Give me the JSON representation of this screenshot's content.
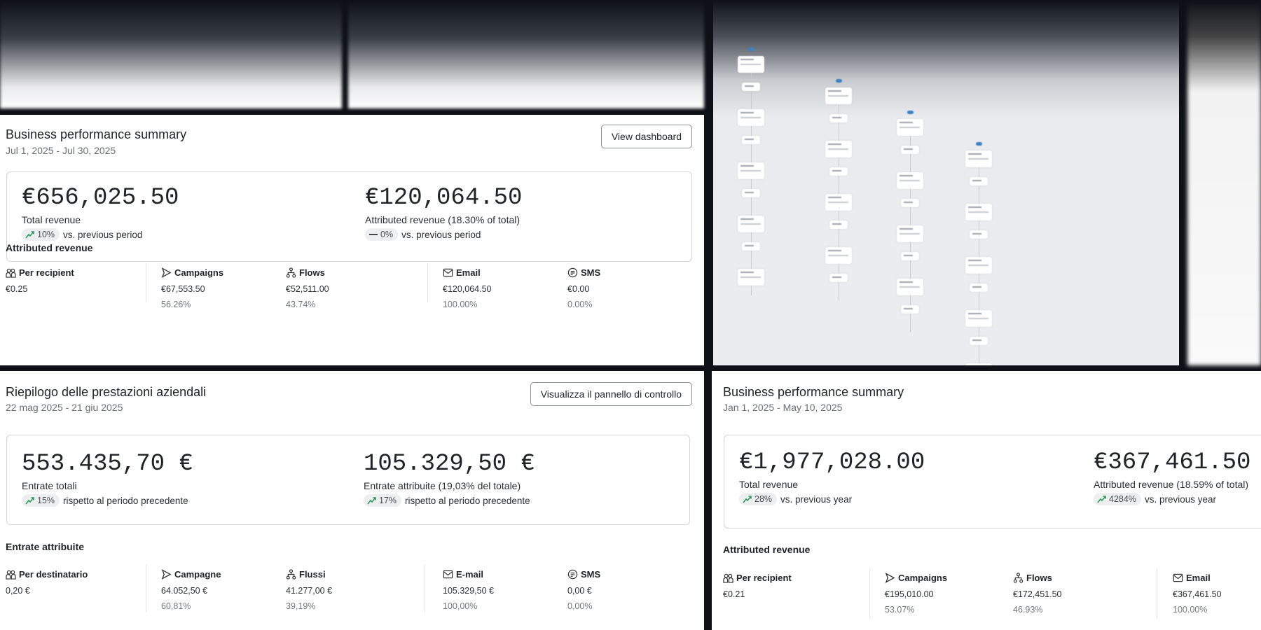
{
  "colors": {
    "accent_up": "#2e9a5a",
    "background": "#0d1117",
    "pill": "#eceef0"
  },
  "panels": [
    {
      "title": "Business performance summary",
      "date_range": "Jul 1, 2025 - Jul 30, 2025",
      "button": "View dashboard",
      "kpis": [
        {
          "value": "€656,025.50",
          "label": "Total revenue",
          "delta": "10%",
          "trend": "up-icon",
          "comparison": "vs. previous period"
        },
        {
          "value": "€120,064.50",
          "label": "Attributed revenue (18.30% of total)",
          "delta": "0%",
          "trend": "flat-icon",
          "comparison": "vs. previous period"
        }
      ],
      "section": "Attributed revenue",
      "metrics": [
        {
          "icon": "recipients-icon",
          "label": "Per recipient",
          "value": "€0.25",
          "percent": ""
        },
        {
          "icon": "campaigns-icon",
          "label": "Campaigns",
          "value": "€67,553.50",
          "percent": "56.26%"
        },
        {
          "icon": "flows-icon",
          "label": "Flows",
          "value": "€52,511.00",
          "percent": "43.74%"
        },
        {
          "icon": "email-icon",
          "label": "Email",
          "value": "€120,064.50",
          "percent": "100.00%"
        },
        {
          "icon": "sms-icon",
          "label": "SMS",
          "value": "€0.00",
          "percent": "0.00%"
        }
      ]
    },
    {
      "title": "Riepilogo delle prestazioni aziendali",
      "date_range": "22 mag 2025 - 21 giu 2025",
      "button": "Visualizza il pannello di controllo",
      "kpis": [
        {
          "value": "553.435,70 €",
          "label": "Entrate totali",
          "delta": "15%",
          "trend": "up-icon",
          "comparison": "rispetto al periodo precedente"
        },
        {
          "value": "105.329,50 €",
          "label": "Entrate attribuite (19,03% del totale)",
          "delta": "17%",
          "trend": "up-icon",
          "comparison": "rispetto al periodo precedente"
        }
      ],
      "section": "Entrate attribuite",
      "metrics": [
        {
          "icon": "recipients-icon",
          "label": "Per destinatario",
          "value": "0,20 €",
          "percent": ""
        },
        {
          "icon": "campaigns-icon",
          "label": "Campagne",
          "value": "64.052,50 €",
          "percent": "60,81%"
        },
        {
          "icon": "flows-icon",
          "label": "Flussi",
          "value": "41.277,00 €",
          "percent": "39,19%"
        },
        {
          "icon": "email-icon",
          "label": "E-mail",
          "value": "105.329,50 €",
          "percent": "100,00%"
        },
        {
          "icon": "sms-icon",
          "label": "SMS",
          "value": "0,00 €",
          "percent": "0,00%"
        }
      ]
    },
    {
      "title": "Business performance summary",
      "date_range": "Jan 1, 2025 - May 10, 2025",
      "kpis": [
        {
          "value": "€1,977,028.00",
          "label": "Total revenue",
          "delta": "28%",
          "trend": "up-icon",
          "comparison": "vs. previous year"
        },
        {
          "value": "€367,461.50",
          "label": "Attributed revenue (18.59% of total)",
          "delta": "4284%",
          "trend": "up-icon",
          "comparison": "vs. previous year"
        }
      ],
      "section": "Attributed revenue",
      "metrics": [
        {
          "icon": "recipients-icon",
          "label": "Per recipient",
          "value": "€0.21",
          "percent": ""
        },
        {
          "icon": "campaigns-icon",
          "label": "Campaigns",
          "value": "€195,010.00",
          "percent": "53.07%"
        },
        {
          "icon": "flows-icon",
          "label": "Flows",
          "value": "€172,451.50",
          "percent": "46.93%"
        },
        {
          "icon": "email-icon",
          "label": "Email",
          "value": "€367,461.50",
          "percent": "100.00%"
        }
      ]
    }
  ]
}
